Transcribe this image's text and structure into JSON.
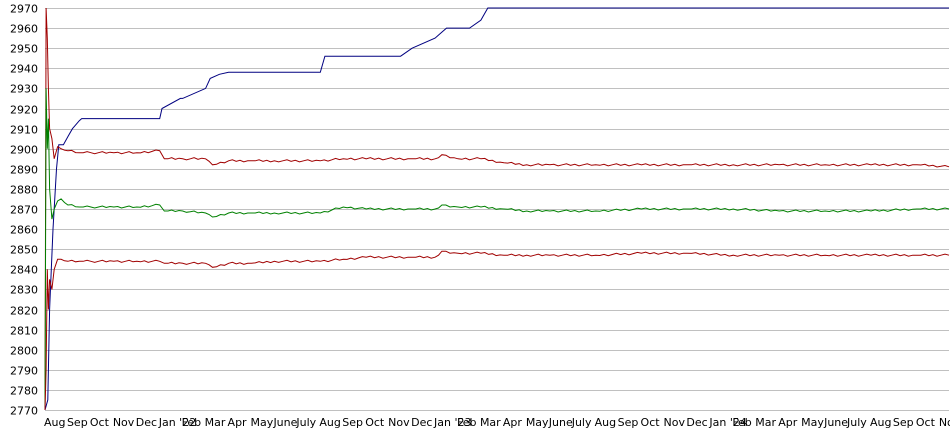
{
  "chart_data": {
    "type": "line",
    "title": "",
    "xlabel": "",
    "ylabel": "",
    "ylim": [
      2770,
      2970
    ],
    "y_ticks": [
      2770,
      2780,
      2790,
      2800,
      2810,
      2820,
      2830,
      2840,
      2850,
      2860,
      2870,
      2880,
      2890,
      2900,
      2910,
      2920,
      2930,
      2940,
      2950,
      2960,
      2970
    ],
    "x_tick_labels": [
      "Aug",
      "Sep",
      "Oct",
      "Nov",
      "Dec",
      "Jan '22",
      "Feb",
      "Mar",
      "Apr",
      "May",
      "June",
      "July",
      "Aug",
      "Sep",
      "Oct",
      "Nov",
      "Dec",
      "Jan '23",
      "Feb",
      "Mar",
      "Apr",
      "May",
      "June",
      "July",
      "Aug",
      "Sep",
      "Oct",
      "Nov",
      "Dec",
      "Jan '24",
      "Feb",
      "Mar",
      "Apr",
      "May",
      "June",
      "July",
      "Aug",
      "Sep",
      "Oct",
      "Nov"
    ],
    "x_tick_positions": [
      0,
      1,
      2,
      3,
      4,
      5,
      6,
      7,
      8,
      9,
      10,
      11,
      12,
      13,
      14,
      15,
      16,
      17,
      18,
      19,
      20,
      21,
      22,
      23,
      24,
      25,
      26,
      27,
      28,
      29,
      30,
      31,
      32,
      33,
      34,
      35,
      36,
      37,
      38,
      39
    ],
    "x_range": [
      0,
      39.4
    ],
    "grid": "horizontal",
    "legend": "none",
    "colors": {
      "max_line": "#000080",
      "upper_line": "#a00000",
      "mid_line": "#008000",
      "lower_line": "#a00000",
      "grid": "#c0c0c0"
    },
    "series": [
      {
        "key": "max",
        "x": [
          0,
          0.12,
          0.2,
          0.35,
          0.5,
          0.6,
          0.8,
          1.0,
          1.2,
          1.5,
          1.6,
          2.0,
          5.0,
          5.1,
          5.9,
          6.0,
          7.0,
          7.2,
          7.6,
          8.0,
          12.0,
          12.2,
          15.5,
          16.0,
          17.0,
          17.2,
          17.5,
          18.0,
          18.5,
          19.0,
          19.3,
          19.6,
          39.4
        ],
        "y": [
          2770,
          2775,
          2820,
          2860,
          2890,
          2902,
          2902,
          2906,
          2910,
          2914,
          2915,
          2915,
          2915,
          2920,
          2925,
          2925,
          2930,
          2935,
          2937,
          2938,
          2938,
          2946,
          2946,
          2950,
          2955,
          2957,
          2960,
          2960,
          2960,
          2964,
          2970,
          2970,
          2970
        ]
      },
      {
        "key": "upper",
        "x": [
          0,
          0.05,
          0.1,
          0.15,
          0.2,
          0.3,
          0.4,
          0.55,
          0.7,
          1.0,
          1.5,
          2.0,
          3.0,
          4.0,
          5.0,
          5.2,
          6.0,
          7.0,
          7.3,
          8.0,
          9.0,
          10.0,
          12.0,
          13.0,
          14.0,
          16.0,
          17.0,
          17.3,
          18.0,
          19.0,
          20.0,
          21.0,
          22.0,
          24.0,
          26.0,
          28.0,
          30.0,
          32.0,
          34.0,
          36.0,
          38.0,
          39.4
        ],
        "y": [
          2770,
          2970,
          2955,
          2930,
          2910,
          2905,
          2895,
          2901,
          2900,
          2899,
          2898,
          2898,
          2898,
          2898,
          2899,
          2895,
          2895,
          2895,
          2892,
          2894,
          2894,
          2894,
          2894,
          2895,
          2895,
          2895,
          2895,
          2897,
          2895,
          2895,
          2893,
          2892,
          2892,
          2892,
          2892,
          2892,
          2892,
          2892,
          2892,
          2892,
          2892,
          2891
        ]
      },
      {
        "key": "mid",
        "x": [
          0,
          0.05,
          0.1,
          0.15,
          0.2,
          0.3,
          0.4,
          0.55,
          0.7,
          1.0,
          1.5,
          2.0,
          3.0,
          4.0,
          5.0,
          5.2,
          6.0,
          7.0,
          7.3,
          8.0,
          9.0,
          10.0,
          12.0,
          13.0,
          14.0,
          16.0,
          17.0,
          17.3,
          18.0,
          19.0,
          20.0,
          21.0,
          22.0,
          24.0,
          26.0,
          28.0,
          30.0,
          32.0,
          34.0,
          36.0,
          38.0,
          39.4
        ],
        "y": [
          2770,
          2930,
          2900,
          2915,
          2880,
          2865,
          2870,
          2874,
          2875,
          2872,
          2871,
          2871,
          2871,
          2871,
          2872,
          2869,
          2869,
          2868,
          2866,
          2868,
          2868,
          2868,
          2868,
          2871,
          2870,
          2870,
          2870,
          2872,
          2871,
          2871,
          2870,
          2869,
          2869,
          2869,
          2870,
          2870,
          2870,
          2869,
          2869,
          2869,
          2870,
          2870
        ]
      },
      {
        "key": "lower",
        "x": [
          0,
          0.05,
          0.1,
          0.15,
          0.2,
          0.3,
          0.4,
          0.55,
          0.7,
          1.0,
          1.5,
          2.0,
          3.0,
          4.0,
          5.0,
          5.2,
          6.0,
          7.0,
          7.3,
          8.0,
          9.0,
          10.0,
          12.0,
          13.0,
          14.0,
          16.0,
          17.0,
          17.3,
          18.0,
          19.0,
          20.0,
          21.0,
          22.0,
          24.0,
          26.0,
          28.0,
          30.0,
          32.0,
          34.0,
          36.0,
          38.0,
          39.4
        ],
        "y": [
          2770,
          2790,
          2840,
          2820,
          2835,
          2830,
          2840,
          2845,
          2845,
          2844,
          2844,
          2844,
          2844,
          2844,
          2844,
          2843,
          2843,
          2843,
          2841,
          2843,
          2843,
          2844,
          2844,
          2845,
          2846,
          2846,
          2846,
          2849,
          2848,
          2848,
          2847,
          2847,
          2847,
          2847,
          2848,
          2848,
          2847,
          2847,
          2847,
          2847,
          2847,
          2847
        ]
      }
    ]
  }
}
